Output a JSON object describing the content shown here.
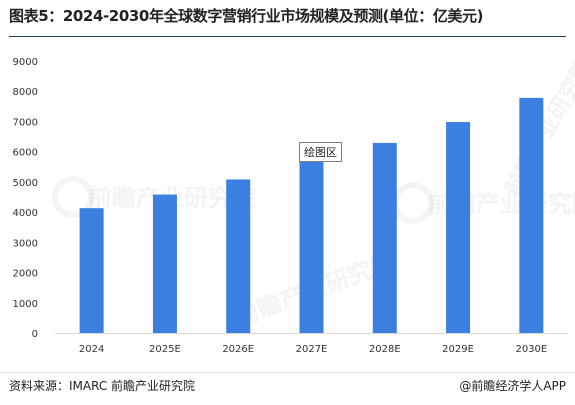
{
  "title": "图表5：2024-2030年全球数字营销行业市场规模及预测(单位：亿美元)",
  "source": "资料来源：IMARC 前瞻产业研究院",
  "brand": "@前瞻经济学人APP",
  "plot_area_tag": "绘图区",
  "watermark": "前瞻产业研究院",
  "bar_color": "#3b7fe0",
  "chart_data": {
    "type": "bar",
    "categories": [
      "2024",
      "2025E",
      "2026E",
      "2027E",
      "2028E",
      "2029E",
      "2030E"
    ],
    "values": [
      4130,
      4580,
      5080,
      5670,
      6290,
      6980,
      7780
    ],
    "ylim": [
      0,
      9000
    ],
    "yticks": [
      0,
      1000,
      2000,
      3000,
      4000,
      5000,
      6000,
      7000,
      8000,
      9000
    ],
    "grid": false,
    "legend": "none"
  }
}
